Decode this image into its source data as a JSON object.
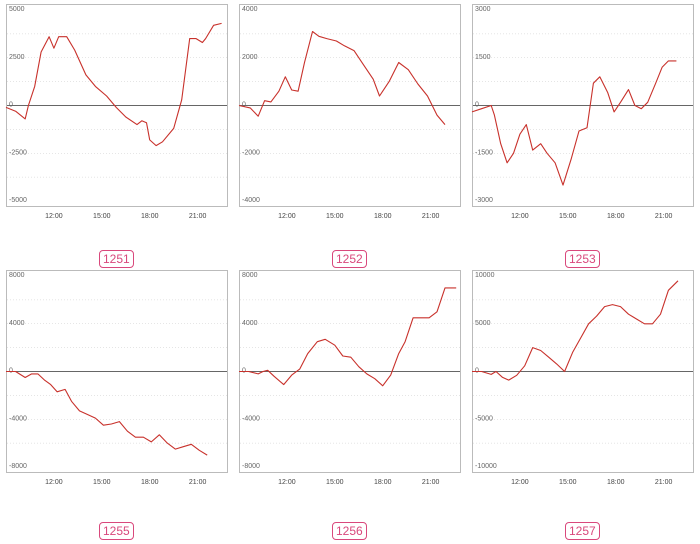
{
  "colors": {
    "line": "#c8312b",
    "zero_line": "#666666",
    "grid": "#cccccc",
    "frame": "#bbbbbb",
    "badge": "#d9487c"
  },
  "chart_data": [
    {
      "id": "1251",
      "type": "line",
      "label": "1251",
      "ylim": [
        -5000,
        5000
      ],
      "yticks": [
        5000,
        2500,
        0,
        -2500,
        -5000
      ],
      "xlim": [
        9.0,
        22.9
      ],
      "xticks": [
        12,
        15,
        18,
        21
      ],
      "xtick_labels": [
        "12:00",
        "15:00",
        "18:00",
        "21:00"
      ],
      "x": [
        9.0,
        9.6,
        10.2,
        10.4,
        10.8,
        11.2,
        11.7,
        12.0,
        12.3,
        12.8,
        13.3,
        14.0,
        14.6,
        15.3,
        15.9,
        16.5,
        17.2,
        17.5,
        17.8,
        18.0,
        18.4,
        18.8,
        19.5,
        20.0,
        20.5,
        20.9,
        21.3,
        21.5,
        22.0,
        22.5
      ],
      "y": [
        -100,
        -300,
        -700,
        0,
        1000,
        2800,
        3600,
        3000,
        3600,
        3600,
        2900,
        1600,
        1000,
        500,
        -100,
        -600,
        -1000,
        -800,
        -900,
        -1800,
        -2100,
        -1900,
        -1200,
        300,
        3500,
        3500,
        3300,
        3500,
        4200,
        4300
      ]
    },
    {
      "id": "1252",
      "type": "line",
      "label": "1252",
      "ylim": [
        -4000,
        4000
      ],
      "yticks": [
        4000,
        2000,
        0,
        -2000,
        -4000
      ],
      "xlim": [
        9.0,
        22.9
      ],
      "xticks": [
        12,
        15,
        18,
        21
      ],
      "xtick_labels": [
        "12:00",
        "15:00",
        "18:00",
        "21:00"
      ],
      "x": [
        9.0,
        9.7,
        10.2,
        10.6,
        11.0,
        11.5,
        11.9,
        12.3,
        12.7,
        13.1,
        13.6,
        14.0,
        14.5,
        15.1,
        15.6,
        16.2,
        16.8,
        17.4,
        17.8,
        18.4,
        19.0,
        19.6,
        20.2,
        20.8,
        21.4,
        21.9
      ],
      "y": [
        0,
        -100,
        -450,
        200,
        150,
        600,
        1200,
        650,
        600,
        1800,
        3100,
        2900,
        2800,
        2700,
        2500,
        2300,
        1700,
        1100,
        400,
        1000,
        1800,
        1500,
        900,
        400,
        -400,
        -800
      ]
    },
    {
      "id": "1253",
      "type": "line",
      "label": "1253",
      "ylim": [
        -3000,
        3000
      ],
      "yticks": [
        3000,
        1500,
        0,
        -1500,
        -3000
      ],
      "xlim": [
        9.0,
        22.9
      ],
      "xticks": [
        12,
        15,
        18,
        21
      ],
      "xtick_labels": [
        "12:00",
        "15:00",
        "18:00",
        "21:00"
      ],
      "x": [
        9.0,
        9.6,
        10.2,
        10.4,
        10.8,
        11.2,
        11.6,
        12.0,
        12.4,
        12.8,
        13.3,
        13.7,
        14.2,
        14.7,
        15.2,
        15.7,
        16.2,
        16.6,
        17.0,
        17.5,
        17.9,
        18.3,
        18.8,
        19.2,
        19.6,
        20.0,
        20.5,
        20.9,
        21.3,
        21.8
      ],
      "y": [
        -200,
        -100,
        0,
        -300,
        -1200,
        -1800,
        -1500,
        -900,
        -600,
        -1400,
        -1200,
        -1500,
        -1800,
        -2500,
        -1700,
        -800,
        -700,
        700,
        900,
        400,
        -200,
        100,
        500,
        0,
        -100,
        100,
        700,
        1200,
        1400,
        1400
      ]
    },
    {
      "id": "1255",
      "type": "line",
      "label": "1255",
      "ylim": [
        -8000,
        8000
      ],
      "yticks": [
        8000,
        4000,
        0,
        -4000,
        -8000
      ],
      "xlim": [
        9.0,
        22.9
      ],
      "xticks": [
        12,
        15,
        18,
        21
      ],
      "xtick_labels": [
        "12:00",
        "15:00",
        "18:00",
        "21:00"
      ],
      "x": [
        9.0,
        9.6,
        10.2,
        10.6,
        11.0,
        11.4,
        11.8,
        12.2,
        12.7,
        13.1,
        13.6,
        14.1,
        14.6,
        15.1,
        15.6,
        16.1,
        16.6,
        17.1,
        17.6,
        18.1,
        18.6,
        19.1,
        19.6,
        20.1,
        20.6,
        21.1,
        21.6
      ],
      "y": [
        0,
        0,
        -500,
        -200,
        -200,
        -700,
        -1100,
        -1700,
        -1500,
        -2500,
        -3300,
        -3600,
        -3900,
        -4500,
        -4400,
        -4200,
        -5000,
        -5500,
        -5500,
        -5900,
        -5300,
        -6000,
        -6500,
        -6300,
        -6100,
        -6600,
        -7000
      ]
    },
    {
      "id": "1256",
      "type": "line",
      "label": "1256",
      "ylim": [
        -8000,
        8000
      ],
      "yticks": [
        8000,
        4000,
        0,
        -4000,
        -8000
      ],
      "xlim": [
        9.0,
        22.9
      ],
      "xticks": [
        12,
        15,
        18,
        21
      ],
      "xtick_labels": [
        "12:00",
        "15:00",
        "18:00",
        "21:00"
      ],
      "x": [
        9.0,
        9.6,
        10.2,
        10.5,
        10.8,
        11.2,
        11.8,
        12.3,
        12.8,
        13.3,
        13.9,
        14.4,
        15.0,
        15.5,
        16.0,
        16.5,
        17.0,
        17.5,
        18.0,
        18.5,
        19.0,
        19.4,
        19.9,
        20.4,
        20.9,
        21.4,
        21.9,
        22.3,
        22.6
      ],
      "y": [
        0,
        0,
        -200,
        0,
        100,
        -400,
        -1100,
        -300,
        200,
        1500,
        2500,
        2700,
        2200,
        1300,
        1200,
        400,
        -200,
        -600,
        -1200,
        -300,
        1500,
        2500,
        4500,
        4500,
        4500,
        5000,
        7000,
        7000,
        7000
      ]
    },
    {
      "id": "1257",
      "type": "line",
      "label": "1257",
      "ylim": [
        -10000,
        10000
      ],
      "yticks": [
        10000,
        5000,
        0,
        -5000,
        -10000
      ],
      "xlim": [
        9.0,
        22.9
      ],
      "xticks": [
        12,
        15,
        18,
        21
      ],
      "xtick_labels": [
        "12:00",
        "15:00",
        "18:00",
        "21:00"
      ],
      "x": [
        9.0,
        9.6,
        10.2,
        10.5,
        10.9,
        11.3,
        11.8,
        12.3,
        12.8,
        13.3,
        13.8,
        14.3,
        14.8,
        15.3,
        15.8,
        16.3,
        16.8,
        17.3,
        17.8,
        18.3,
        18.8,
        19.3,
        19.8,
        20.3,
        20.8,
        21.3,
        21.9
      ],
      "y": [
        0,
        0,
        -300,
        0,
        -600,
        -900,
        -400,
        600,
        2500,
        2200,
        1500,
        800,
        0,
        2000,
        3500,
        5000,
        5800,
        6800,
        7000,
        6800,
        6000,
        5500,
        5000,
        5000,
        6000,
        8500,
        9500
      ]
    }
  ]
}
